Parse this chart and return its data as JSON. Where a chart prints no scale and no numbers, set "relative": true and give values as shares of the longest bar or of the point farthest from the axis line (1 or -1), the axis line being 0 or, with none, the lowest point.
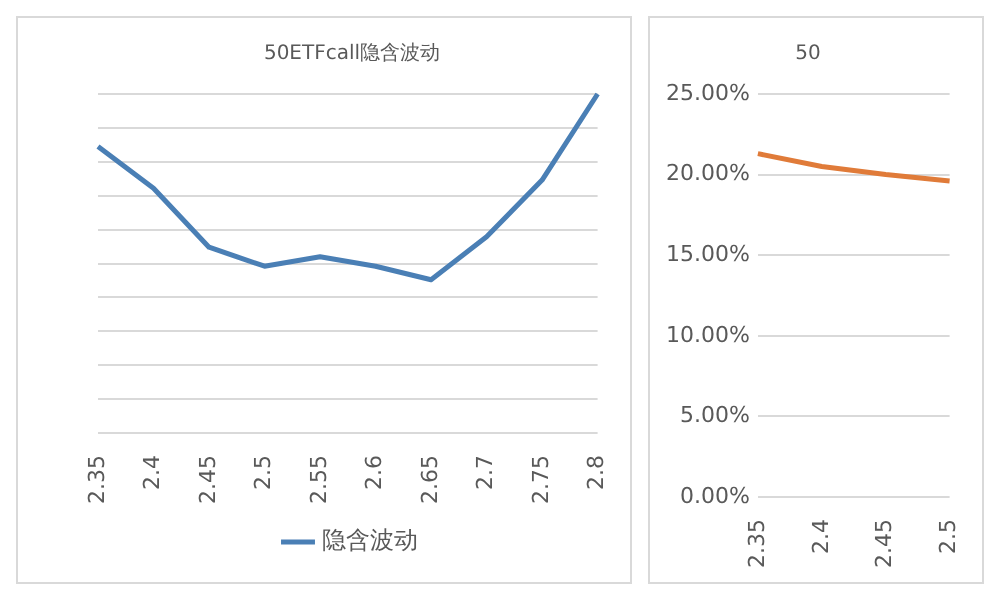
{
  "chart_data": [
    {
      "type": "line",
      "title": "50ETFcall隐含波动",
      "relative": true,
      "categories": [
        "2.35",
        "2.4",
        "2.45",
        "2.5",
        "2.55",
        "2.6",
        "2.65",
        "2.7",
        "2.75",
        "2.8"
      ],
      "series": [
        {
          "name": "隐含波动",
          "color": "#4a7fb5",
          "values": [
            0.845,
            0.722,
            0.548,
            0.492,
            0.52,
            0.492,
            0.452,
            0.579,
            0.746,
            1
          ]
        }
      ],
      "grid": "y",
      "legend": "bottom",
      "marker": "none"
    },
    {
      "type": "line",
      "title": "50",
      "categories": [
        "2.35",
        "2.4",
        "2.45",
        "2.5"
      ],
      "series": [
        {
          "color": "#e07b39",
          "values": [
            21.3,
            20.5,
            20.0,
            19.6
          ]
        }
      ],
      "ylim": [
        0,
        25
      ],
      "yticks": [
        {
          "value": 0,
          "label": "0.00%"
        },
        {
          "value": 5,
          "label": "5.00%"
        },
        {
          "value": 10,
          "label": "10.00%"
        },
        {
          "value": 15,
          "label": "15.00%"
        },
        {
          "value": 20,
          "label": "20.00%"
        },
        {
          "value": 25,
          "label": "25.00%"
        }
      ],
      "grid": "y",
      "marker": "none"
    }
  ]
}
